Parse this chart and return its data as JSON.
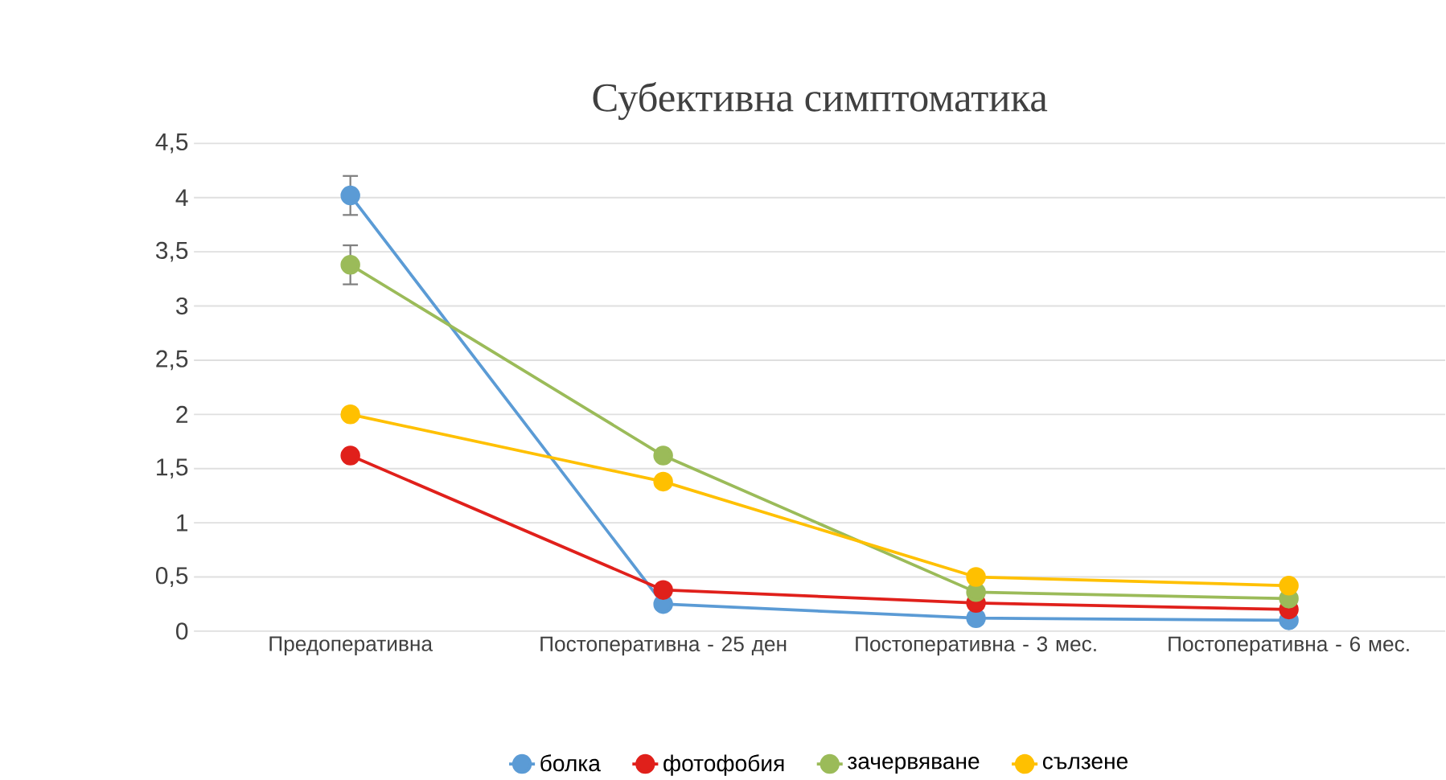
{
  "chart_data": {
    "type": "line",
    "title": "Субективна симптоматика",
    "categories": [
      "Предоперативна",
      "Постоперативна - 25 ден",
      "Постоперативна - 3 мес.",
      "Постоперативна - 6 мес."
    ],
    "series": [
      {
        "name": "болка",
        "color": "#5b9bd5",
        "values": [
          4.02,
          0.25,
          0.12,
          0.1
        ],
        "errors": [
          0.18,
          null,
          null,
          null
        ]
      },
      {
        "name": "фотофобия",
        "color": "#e0201b",
        "values": [
          1.62,
          0.38,
          0.26,
          0.2
        ]
      },
      {
        "name": "зачервяване",
        "color": "#9bbb59",
        "values": [
          3.38,
          1.62,
          0.36,
          0.3
        ],
        "errors": [
          0.18,
          null,
          null,
          null
        ]
      },
      {
        "name": "сълзене",
        "color": "#ffc000",
        "values": [
          2.0,
          1.38,
          0.5,
          0.42
        ]
      }
    ],
    "ylim": [
      0,
      4.5
    ],
    "yticks": [
      0,
      {
        "value": 0.5,
        "label": "0,5"
      },
      1,
      {
        "value": 1.5,
        "label": "1,5"
      },
      2,
      {
        "value": 2.5,
        "label": "2,5"
      },
      3,
      {
        "value": 3.5,
        "label": "3,5"
      },
      4,
      {
        "value": 4.5,
        "label": "4,5"
      }
    ],
    "grid": "y",
    "legend": "bottom",
    "marker": "circle",
    "line_style": "solid"
  }
}
